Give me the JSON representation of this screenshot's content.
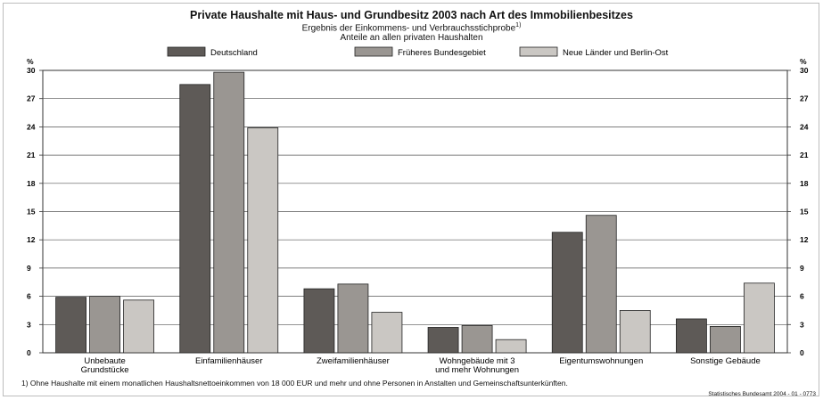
{
  "chart_data": {
    "type": "bar",
    "title": "Private Haushalte mit Haus- und Grundbesitz 2003 nach Art des Immobilienbesitzes",
    "subtitle": "Ergebnis der Einkommens- und Verbrauchsstichprobe",
    "subtitle_note_mark": "1)",
    "subtitle2": "Anteile an allen privaten Haushalten",
    "ylabel": "%",
    "ylim": [
      0,
      30
    ],
    "yticks": [
      "0",
      "3",
      "6",
      "9",
      "12",
      "15",
      "18",
      "21",
      "24",
      "27",
      "30"
    ],
    "grid": true,
    "legend_position": "top",
    "categories": [
      [
        "Unbebaute",
        "Grundstücke"
      ],
      [
        "Einfamilienhäuser"
      ],
      [
        "Zweifamilienhäuser"
      ],
      [
        "Wohngebäude mit 3",
        "und mehr Wohnungen"
      ],
      [
        "Eigentumswohnungen"
      ],
      [
        "Sonstige Gebäude"
      ]
    ],
    "series": [
      {
        "name": "Deutschland",
        "color": "#5e5a57",
        "values": [
          5.9,
          28.5,
          6.8,
          2.7,
          12.8,
          3.6
        ]
      },
      {
        "name": "Früheres Bundesgebiet",
        "color": "#9a9692",
        "values": [
          6.0,
          29.8,
          7.3,
          2.9,
          14.6,
          2.8
        ]
      },
      {
        "name": "Neue Länder und Berlin-Ost",
        "color": "#cac7c3",
        "values": [
          5.6,
          23.9,
          4.3,
          1.4,
          4.5,
          7.4
        ]
      }
    ],
    "footnote": "1) Ohne Haushalte mit einem monatlichen Haushaltsnettoeinkommen von 18 000 EUR und mehr und ohne Personen in Anstalten und Gemeinschaftsunterkünften.",
    "source": "Statistisches Bundesamt 2004 - 01 - 0773"
  }
}
